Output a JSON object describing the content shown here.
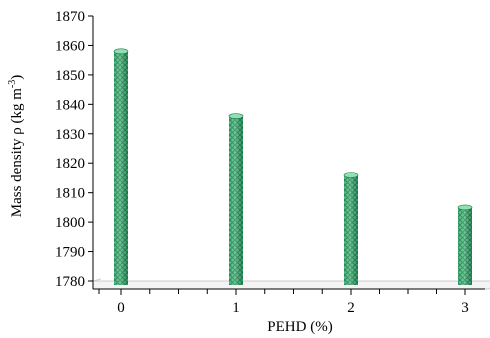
{
  "chart_data": {
    "type": "bar",
    "categories": [
      "0",
      "1",
      "2",
      "3"
    ],
    "values": [
      1858,
      1836,
      1816,
      1805
    ],
    "xlabel": "PEHD (%)",
    "ylabel": "Mass density ρ (kg m",
    "ylabel_superscript": "-3",
    "ylabel_close": ")",
    "ylim": [
      1780,
      1870
    ],
    "yticks": [
      1780,
      1790,
      1800,
      1810,
      1820,
      1830,
      1840,
      1850,
      1860,
      1870
    ],
    "grid": false,
    "legend": "none",
    "colors": {
      "bar_fill": "#3dbb7a",
      "bar_pattern": "#1f7a4a",
      "bar_light": "#8fe0b2",
      "axis": "#000000",
      "floor": "#cccccc"
    }
  }
}
